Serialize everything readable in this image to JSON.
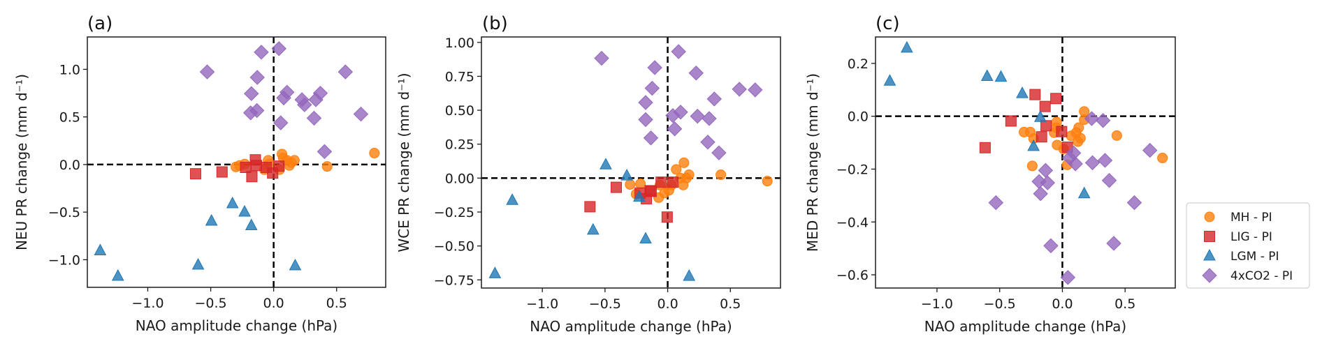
{
  "figure": {
    "legend": {
      "placement": "right-of-panel-c-bottom",
      "entries": [
        {
          "label": "MH - PI",
          "series": "MH"
        },
        {
          "label": "LIG - PI",
          "series": "LIG"
        },
        {
          "label": "LGM - PI",
          "series": "LGM"
        },
        {
          "label": "4xCO2 - PI",
          "series": "4xCO2"
        }
      ]
    },
    "series_style": {
      "MH": {
        "marker": "circle",
        "color": "#ff7f0e"
      },
      "LIG": {
        "marker": "square",
        "color": "#d62728"
      },
      "LGM": {
        "marker": "triangle",
        "color": "#1f77b4"
      },
      "4xCO2": {
        "marker": "diamond",
        "color": "#9467bd"
      }
    }
  },
  "chart_data": [
    {
      "type": "scatter",
      "panel_label": "(a)",
      "title": "",
      "xlabel": "NAO amplitude change (hPa)",
      "ylabel": "NEU PR change (mm d⁻¹)",
      "xlim": [
        -1.48,
        0.89
      ],
      "ylim": [
        -1.29,
        1.34
      ],
      "xticks": [
        -1.0,
        -0.5,
        0.0,
        0.5
      ],
      "xtick_labels": [
        "−1.0",
        "−0.5",
        "0.0",
        "0.5"
      ],
      "yticks": [
        -1.0,
        -0.5,
        0.0,
        0.5,
        1.0
      ],
      "ytick_labels": [
        "−1.0",
        "−0.5",
        "0.0",
        "0.5",
        "1.0"
      ],
      "reference_lines": {
        "x": 0,
        "y": 0,
        "style": "dashed"
      },
      "grid": false,
      "series": [
        {
          "name": "MH",
          "points": [
            [
              0.8,
              0.12
            ],
            [
              0.425,
              -0.02
            ],
            [
              0.066,
              0.11
            ],
            [
              -0.3,
              -0.025
            ],
            [
              -0.23,
              0.005
            ],
            [
              -0.044,
              0.044
            ],
            [
              0.106,
              0.044
            ],
            [
              0.165,
              0.044
            ],
            [
              0.125,
              -0.01
            ],
            [
              -0.074,
              -0.054
            ],
            [
              0.046,
              -0.054
            ],
            [
              -0.034,
              0.007
            ],
            [
              0.076,
              0.068
            ],
            [
              -0.27,
              -0.01
            ],
            [
              0.14,
              0.02
            ]
          ]
        },
        {
          "name": "LIG",
          "points": [
            [
              -0.62,
              -0.097
            ],
            [
              -0.41,
              -0.078
            ],
            [
              -0.145,
              0.049
            ],
            [
              -0.137,
              -0.01
            ],
            [
              -0.173,
              -0.127
            ],
            [
              -0.223,
              -0.03
            ],
            [
              -0.058,
              -0.03
            ],
            [
              -0.008,
              -0.09
            ],
            [
              0.042,
              -0.017
            ]
          ]
        },
        {
          "name": "LGM",
          "points": [
            [
              -1.378,
              -0.905
            ],
            [
              -1.237,
              -1.173
            ],
            [
              -0.6,
              -1.056
            ],
            [
              -0.494,
              -0.594
            ],
            [
              -0.327,
              -0.411
            ],
            [
              -0.231,
              -0.499
            ],
            [
              -0.177,
              -0.642
            ],
            [
              0.171,
              -1.063
            ]
          ]
        },
        {
          "name": "4xCO2",
          "points": [
            [
              -0.528,
              0.973
            ],
            [
              -0.098,
              1.18
            ],
            [
              0.042,
              1.217
            ],
            [
              -0.13,
              0.915
            ],
            [
              -0.177,
              0.745
            ],
            [
              -0.183,
              0.543
            ],
            [
              -0.133,
              0.567
            ],
            [
              0.056,
              0.438
            ],
            [
              0.08,
              0.7
            ],
            [
              0.106,
              0.759
            ],
            [
              0.225,
              0.681
            ],
            [
              0.245,
              0.628
            ],
            [
              0.321,
              0.487
            ],
            [
              0.335,
              0.681
            ],
            [
              0.371,
              0.749
            ],
            [
              0.57,
              0.973
            ],
            [
              0.693,
              0.53
            ],
            [
              0.404,
              0.136
            ]
          ]
        }
      ]
    },
    {
      "type": "scatter",
      "panel_label": "(b)",
      "title": "",
      "xlabel": "NAO amplitude change (hPa)",
      "ylabel": "WCE PR change (mm d⁻¹)",
      "xlim": [
        -1.486,
        0.9
      ],
      "ylim": [
        -0.81,
        1.04
      ],
      "xticks": [
        -1.0,
        -0.5,
        0.0,
        0.5
      ],
      "xtick_labels": [
        "−1.0",
        "−0.5",
        "0.0",
        "0.5"
      ],
      "yticks": [
        -0.75,
        -0.5,
        -0.25,
        0.0,
        0.25,
        0.5,
        0.75,
        1.0
      ],
      "ytick_labels": [
        "−0.75",
        "−0.50",
        "−0.25",
        "0.00",
        "0.25",
        "0.50",
        "0.75",
        "1.00"
      ],
      "reference_lines": {
        "x": 0,
        "y": 0,
        "style": "dashed"
      },
      "grid": false,
      "series": [
        {
          "name": "MH",
          "points": [
            [
              0.795,
              -0.022
            ],
            [
              0.424,
              0.025
            ],
            [
              0.13,
              0.113
            ],
            [
              0.068,
              0.064
            ],
            [
              0.17,
              0.025
            ],
            [
              0.124,
              -0.051
            ],
            [
              -0.3,
              -0.047
            ],
            [
              -0.217,
              -0.042
            ],
            [
              -0.252,
              -0.118
            ],
            [
              -0.072,
              -0.144
            ],
            [
              -0.025,
              -0.11
            ],
            [
              0.031,
              -0.051
            ],
            [
              0.103,
              0.0
            ],
            [
              -0.062,
              -0.051
            ],
            [
              0.01,
              -0.09
            ],
            [
              0.15,
              0.0
            ]
          ]
        },
        {
          "name": "LIG",
          "points": [
            [
              -0.62,
              -0.211
            ],
            [
              -0.41,
              -0.068
            ],
            [
              -0.132,
              -0.098
            ],
            [
              -0.17,
              -0.152
            ],
            [
              -0.22,
              -0.11
            ],
            [
              -0.052,
              -0.03
            ],
            [
              -0.004,
              -0.287
            ],
            [
              0.041,
              -0.03
            ],
            [
              -0.14,
              -0.093
            ]
          ]
        },
        {
          "name": "LGM",
          "points": [
            [
              -1.378,
              -0.704
            ],
            [
              -1.24,
              -0.164
            ],
            [
              -0.595,
              -0.383
            ],
            [
              -0.494,
              0.098
            ],
            [
              -0.326,
              0.017
            ],
            [
              -0.227,
              -0.14
            ],
            [
              -0.176,
              -0.448
            ],
            [
              0.171,
              -0.723
            ]
          ]
        },
        {
          "name": "4xCO2",
          "points": [
            [
              -0.527,
              0.883
            ],
            [
              -0.103,
              0.814
            ],
            [
              -0.124,
              0.662
            ],
            [
              -0.176,
              0.557
            ],
            [
              -0.176,
              0.431
            ],
            [
              -0.134,
              0.296
            ],
            [
              0.087,
              0.932
            ],
            [
              0.227,
              0.774
            ],
            [
              0.041,
              0.461
            ],
            [
              0.103,
              0.486
            ],
            [
              0.056,
              0.363
            ],
            [
              0.238,
              0.456
            ],
            [
              0.331,
              0.439
            ],
            [
              0.372,
              0.583
            ],
            [
              0.32,
              0.265
            ],
            [
              0.409,
              0.186
            ],
            [
              0.572,
              0.655
            ],
            [
              0.698,
              0.65
            ]
          ]
        }
      ]
    },
    {
      "type": "scatter",
      "panel_label": "(c)",
      "title": "",
      "xlabel": "NAO amplitude change (hPa)",
      "ylabel": "MED PR change (mm d⁻¹)",
      "xlim": [
        -1.49,
        0.9
      ],
      "ylim": [
        -0.65,
        0.3
      ],
      "xticks": [
        -1.0,
        -0.5,
        0.0,
        0.5
      ],
      "xtick_labels": [
        "−1.0",
        "−0.5",
        "0.0",
        "0.5"
      ],
      "yticks": [
        -0.6,
        -0.4,
        -0.2,
        0.0,
        0.2
      ],
      "ytick_labels": [
        "−0.6",
        "−0.4",
        "−0.2",
        "0.0",
        "0.2"
      ],
      "reference_lines": {
        "x": 0,
        "y": 0,
        "style": "dashed"
      },
      "grid": false,
      "series": [
        {
          "name": "MH",
          "points": [
            [
              0.174,
              0.018
            ],
            [
              0.174,
              -0.013
            ],
            [
              -0.046,
              -0.022
            ],
            [
              -0.05,
              -0.043
            ],
            [
              -0.306,
              -0.06
            ],
            [
              -0.256,
              -0.06
            ],
            [
              -0.23,
              -0.084
            ],
            [
              -0.066,
              -0.062
            ],
            [
              -0.042,
              -0.109
            ],
            [
              0.13,
              -0.043
            ],
            [
              0.11,
              -0.062
            ],
            [
              0.07,
              -0.074
            ],
            [
              0.144,
              -0.083
            ],
            [
              0.124,
              -0.096
            ],
            [
              0.434,
              -0.073
            ],
            [
              0.798,
              -0.158
            ],
            [
              -0.24,
              -0.188
            ],
            [
              0.038,
              -0.184
            ],
            [
              0.01,
              -0.124
            ]
          ]
        },
        {
          "name": "LIG",
          "points": [
            [
              -0.616,
              -0.119
            ],
            [
              -0.41,
              -0.018
            ],
            [
              -0.218,
              0.082
            ],
            [
              -0.138,
              0.037
            ],
            [
              -0.13,
              -0.036
            ],
            [
              -0.166,
              -0.078
            ],
            [
              -0.052,
              0.067
            ],
            [
              -0.006,
              -0.058
            ],
            [
              0.04,
              -0.117
            ]
          ]
        },
        {
          "name": "LGM",
          "points": [
            [
              -1.376,
              0.133
            ],
            [
              -1.24,
              0.258
            ],
            [
              -0.6,
              0.151
            ],
            [
              -0.49,
              0.148
            ],
            [
              -0.32,
              0.086
            ],
            [
              -0.176,
              -0.004
            ],
            [
              -0.23,
              -0.114
            ],
            [
              0.174,
              -0.293
            ]
          ]
        },
        {
          "name": "4xCO2",
          "points": [
            [
              -0.53,
              -0.327
            ],
            [
              -0.134,
              -0.205
            ],
            [
              -0.186,
              -0.247
            ],
            [
              -0.118,
              -0.252
            ],
            [
              -0.174,
              -0.293
            ],
            [
              -0.092,
              -0.49
            ],
            [
              0.044,
              -0.61
            ],
            [
              0.058,
              -0.158
            ],
            [
              0.09,
              -0.139
            ],
            [
              0.104,
              -0.18
            ],
            [
              0.234,
              -0.009
            ],
            [
              0.324,
              -0.016
            ],
            [
              0.24,
              -0.176
            ],
            [
              0.34,
              -0.167
            ],
            [
              0.374,
              -0.243
            ],
            [
              0.41,
              -0.481
            ],
            [
              0.574,
              -0.327
            ],
            [
              0.698,
              -0.129
            ]
          ]
        }
      ]
    }
  ]
}
